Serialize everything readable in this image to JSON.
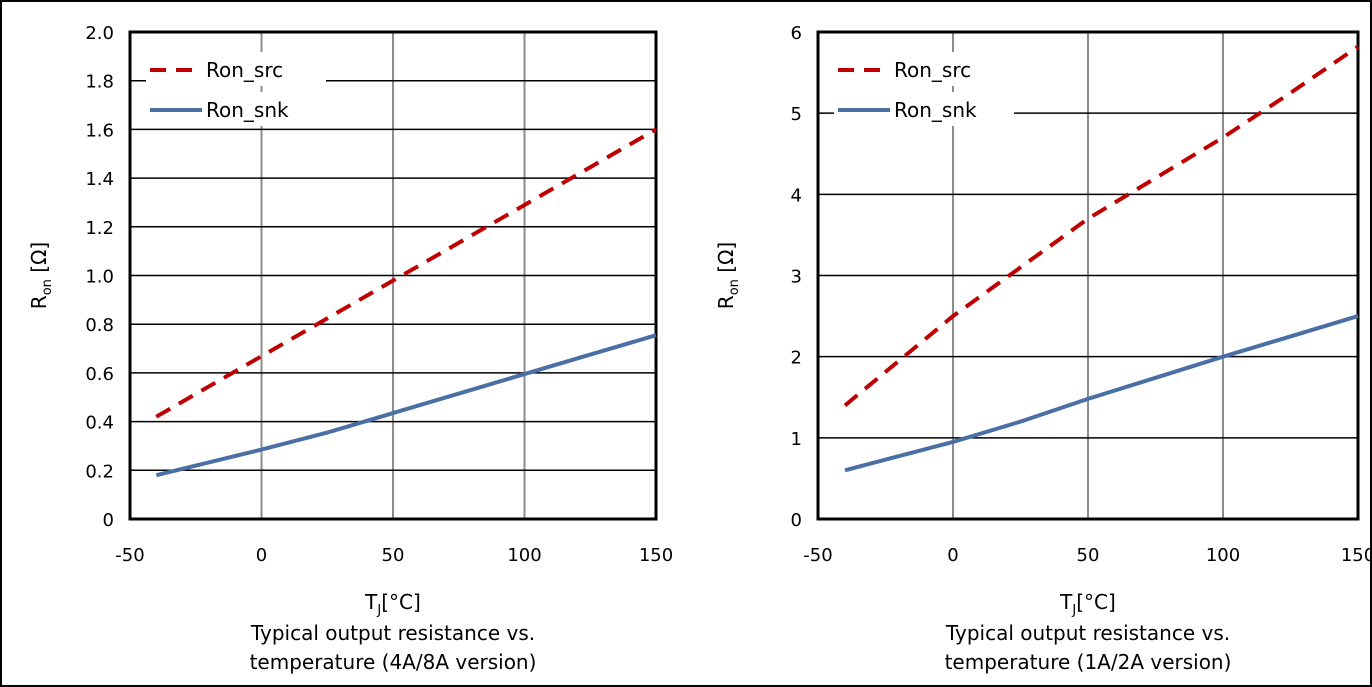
{
  "chart_data": [
    {
      "type": "line",
      "caption_lines": [
        "Typical output resistance vs.",
        "temperature (4A/8A version)"
      ],
      "xlabel_main": "T",
      "xlabel_sub": "J",
      "xlabel_unit": "[°C]",
      "ylabel_main": "R",
      "ylabel_sub": "on",
      "ylabel_unit": " [Ω]",
      "xlim": [
        -50,
        150
      ],
      "ylim": [
        0,
        2.0
      ],
      "x_ticks": [
        -50,
        0,
        50,
        100,
        150
      ],
      "x_tick_labels": [
        "-50",
        "0",
        "50",
        "100",
        "150"
      ],
      "y_ticks": [
        0,
        0.2,
        0.4,
        0.6,
        0.8,
        1.0,
        1.2,
        1.4,
        1.6,
        1.8,
        2.0
      ],
      "y_tick_labels": [
        "0",
        "0.2",
        "0.4",
        "0.6",
        "0.8",
        "1.0",
        "1.2",
        "1.4",
        "1.6",
        "1.8",
        "2.0"
      ],
      "grid": true,
      "legend_position": "top-left",
      "series": [
        {
          "name": "Ron_src",
          "style": "dashed",
          "color": "#c00000",
          "x": [
            -40,
            150
          ],
          "y": [
            0.42,
            1.6
          ]
        },
        {
          "name": "Ron_snk",
          "style": "solid",
          "color": "#4a6fa5",
          "x": [
            -40,
            0,
            25,
            50,
            75,
            100,
            125,
            150
          ],
          "y": [
            0.18,
            0.285,
            0.355,
            0.435,
            0.515,
            0.595,
            0.675,
            0.755
          ]
        }
      ]
    },
    {
      "type": "line",
      "caption_lines": [
        "Typical output resistance vs.",
        "temperature (1A/2A version)"
      ],
      "xlabel_main": "T",
      "xlabel_sub": "J",
      "xlabel_unit": "[°C]",
      "ylabel_main": "R",
      "ylabel_sub": "on",
      "ylabel_unit": " [Ω]",
      "xlim": [
        -50,
        150
      ],
      "ylim": [
        0,
        6
      ],
      "x_ticks": [
        -50,
        0,
        50,
        100,
        150
      ],
      "x_tick_labels": [
        "-50",
        "0",
        "50",
        "100",
        "150"
      ],
      "y_ticks": [
        0,
        1,
        2,
        3,
        4,
        5,
        6
      ],
      "y_tick_labels": [
        "0",
        "1",
        "2",
        "3",
        "4",
        "5",
        "6"
      ],
      "grid": true,
      "legend_position": "top-left",
      "series": [
        {
          "name": "Ron_src",
          "style": "dashed",
          "color": "#c00000",
          "x": [
            -40,
            0,
            25,
            50,
            75,
            100,
            125,
            150
          ],
          "y": [
            1.4,
            2.5,
            3.1,
            3.7,
            4.2,
            4.7,
            5.25,
            5.82
          ]
        },
        {
          "name": "Ron_snk",
          "style": "solid",
          "color": "#4a6fa5",
          "x": [
            -40,
            0,
            25,
            50,
            75,
            100,
            125,
            150
          ],
          "y": [
            0.6,
            0.95,
            1.2,
            1.48,
            1.74,
            2.0,
            2.25,
            2.5
          ]
        }
      ]
    }
  ]
}
